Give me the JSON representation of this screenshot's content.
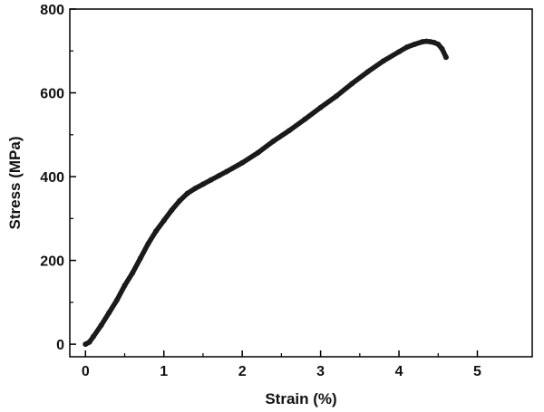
{
  "chart_data": {
    "type": "line",
    "title": "",
    "xlabel": "Strain (%)",
    "ylabel": "Stress (MPa)",
    "xlim": [
      -0.2,
      5.7
    ],
    "ylim": [
      -30,
      800
    ],
    "xticks": [
      0,
      1,
      2,
      3,
      4,
      5
    ],
    "yticks": [
      0,
      200,
      400,
      600,
      800
    ],
    "xtick_labels": [
      "0",
      "1",
      "2",
      "3",
      "4",
      "5"
    ],
    "ytick_labels": [
      "0",
      "200",
      "400",
      "600",
      "800"
    ],
    "grid": false,
    "legend": "none",
    "colors": {
      "line": "#1a1a1a",
      "axis": "#000000"
    },
    "series": [
      {
        "x": [
          0.0,
          0.05,
          0.1,
          0.2,
          0.3,
          0.4,
          0.5,
          0.6,
          0.7,
          0.8,
          0.9,
          1.0,
          1.1,
          1.2,
          1.3,
          1.4,
          1.5,
          1.6,
          1.7,
          1.8,
          2.0,
          2.2,
          2.4,
          2.6,
          2.8,
          3.0,
          3.2,
          3.4,
          3.6,
          3.8,
          4.0,
          4.1,
          4.2,
          4.3,
          4.35,
          4.4,
          4.45,
          4.5,
          4.55,
          4.6
        ],
        "y": [
          0,
          5,
          18,
          45,
          75,
          105,
          140,
          170,
          205,
          240,
          270,
          295,
          320,
          342,
          360,
          372,
          382,
          392,
          402,
          412,
          433,
          457,
          485,
          510,
          537,
          565,
          592,
          622,
          650,
          676,
          698,
          709,
          716,
          722,
          723,
          722,
          720,
          716,
          705,
          685
        ]
      }
    ]
  }
}
